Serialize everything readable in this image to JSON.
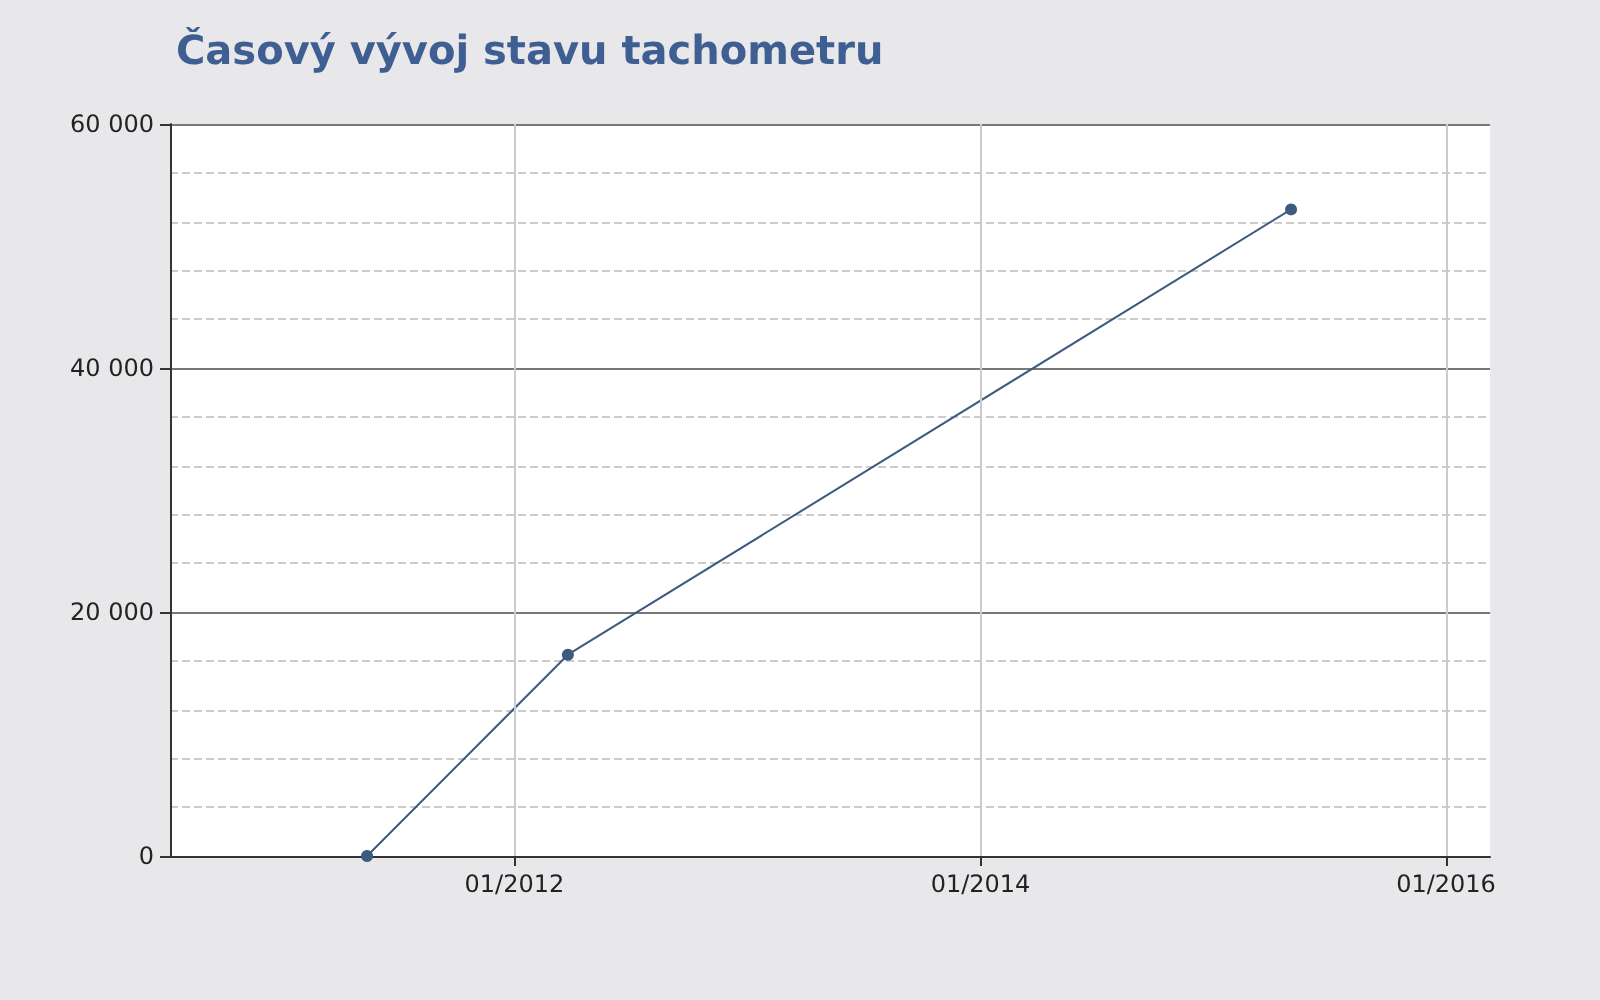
{
  "chart_data": {
    "type": "line",
    "title": "Časový vývoj stavu tachometru",
    "x": [
      "2011-05-15",
      "2012-03-25",
      "2015-05-03"
    ],
    "series": [
      {
        "color": "#3d5a80",
        "values": [
          0,
          16500,
          53000
        ]
      }
    ],
    "xlim": [
      "2010-07-10",
      "2016-03-10"
    ],
    "xticks": [
      {
        "value": "2012-01-01",
        "label": "01/2012"
      },
      {
        "value": "2014-01-01",
        "label": "01/2014"
      },
      {
        "value": "2016-01-01",
        "label": "01/2016"
      }
    ],
    "ylim": [
      0,
      60000
    ],
    "yticks": [
      {
        "value": 0,
        "label": "0"
      },
      {
        "value": 20000,
        "label": "20 000"
      },
      {
        "value": 40000,
        "label": "40 000"
      },
      {
        "value": 60000,
        "label": "60 000"
      }
    ],
    "grid": true,
    "marker": "circle",
    "line_style": "solid"
  }
}
